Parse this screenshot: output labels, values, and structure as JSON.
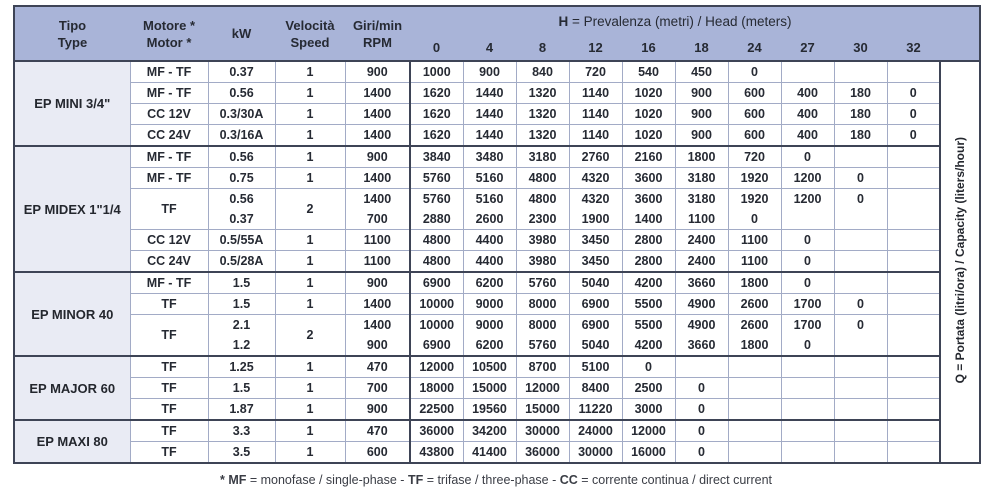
{
  "header": {
    "tipo": [
      "Tipo",
      "Type"
    ],
    "motore": [
      "Motore *",
      "Motor *"
    ],
    "kw": [
      "kW"
    ],
    "speed": [
      "Velocità",
      "Speed"
    ],
    "rpm": [
      "Giri/min",
      "RPM"
    ],
    "h_title": {
      "bold": "H",
      "rest": " = Prevalenza (metri) / Head (meters)"
    },
    "h_cols": [
      "0",
      "4",
      "8",
      "12",
      "16",
      "18",
      "24",
      "27",
      "30",
      "32"
    ]
  },
  "q_label": {
    "bold": "Q",
    "rest": " = Portata (litri/ora) / Capacity (liters/hour)"
  },
  "colors": {
    "header_bg": "#a9b4d8",
    "group_bg": "#e9ebf4",
    "grid_line": "#a2abc6",
    "dark_line": "#3e4456",
    "text": "#262a33"
  },
  "groups": [
    {
      "name": "EP MINI 3/4\"",
      "rows": [
        {
          "motor": "MF - TF",
          "kw": [
            "0.37"
          ],
          "speed": "1",
          "rpm": [
            "900"
          ],
          "h": [
            [
              "1000"
            ],
            [
              "900"
            ],
            [
              "840"
            ],
            [
              "720"
            ],
            [
              "540"
            ],
            [
              "450"
            ],
            [
              "0"
            ],
            [],
            [],
            []
          ]
        },
        {
          "motor": "MF - TF",
          "kw": [
            "0.56"
          ],
          "speed": "1",
          "rpm": [
            "1400"
          ],
          "h": [
            [
              "1620"
            ],
            [
              "1440"
            ],
            [
              "1320"
            ],
            [
              "1140"
            ],
            [
              "1020"
            ],
            [
              "900"
            ],
            [
              "600"
            ],
            [
              "400"
            ],
            [
              "180"
            ],
            [
              "0"
            ]
          ]
        },
        {
          "motor": "CC 12V",
          "kw": [
            "0.3/30A"
          ],
          "speed": "1",
          "rpm": [
            "1400"
          ],
          "h": [
            [
              "1620"
            ],
            [
              "1440"
            ],
            [
              "1320"
            ],
            [
              "1140"
            ],
            [
              "1020"
            ],
            [
              "900"
            ],
            [
              "600"
            ],
            [
              "400"
            ],
            [
              "180"
            ],
            [
              "0"
            ]
          ]
        },
        {
          "motor": "CC 24V",
          "kw": [
            "0.3/16A"
          ],
          "speed": "1",
          "rpm": [
            "1400"
          ],
          "h": [
            [
              "1620"
            ],
            [
              "1440"
            ],
            [
              "1320"
            ],
            [
              "1140"
            ],
            [
              "1020"
            ],
            [
              "900"
            ],
            [
              "600"
            ],
            [
              "400"
            ],
            [
              "180"
            ],
            [
              "0"
            ]
          ]
        }
      ]
    },
    {
      "name": "EP MIDEX 1\"1/4",
      "rows": [
        {
          "motor": "MF - TF",
          "kw": [
            "0.56"
          ],
          "speed": "1",
          "rpm": [
            "900"
          ],
          "h": [
            [
              "3840"
            ],
            [
              "3480"
            ],
            [
              "3180"
            ],
            [
              "2760"
            ],
            [
              "2160"
            ],
            [
              "1800"
            ],
            [
              "720"
            ],
            [
              "0"
            ],
            [],
            []
          ]
        },
        {
          "motor": "MF - TF",
          "kw": [
            "0.75"
          ],
          "speed": "1",
          "rpm": [
            "1400"
          ],
          "h": [
            [
              "5760"
            ],
            [
              "5160"
            ],
            [
              "4800"
            ],
            [
              "4320"
            ],
            [
              "3600"
            ],
            [
              "3180"
            ],
            [
              "1920"
            ],
            [
              "1200"
            ],
            [
              "0"
            ],
            []
          ]
        },
        {
          "motor": "TF",
          "kw": [
            "0.56",
            "0.37"
          ],
          "speed": "2",
          "rpm": [
            "1400",
            "700"
          ],
          "h": [
            [
              "5760",
              "2880"
            ],
            [
              "5160",
              "2600"
            ],
            [
              "4800",
              "2300"
            ],
            [
              "4320",
              "1900"
            ],
            [
              "3600",
              "1400"
            ],
            [
              "3180",
              "1100"
            ],
            [
              "1920",
              "0"
            ],
            [
              "1200",
              ""
            ],
            [
              "0",
              ""
            ],
            []
          ]
        },
        {
          "motor": "CC 12V",
          "kw": [
            "0.5/55A"
          ],
          "speed": "1",
          "rpm": [
            "1100"
          ],
          "h": [
            [
              "4800"
            ],
            [
              "4400"
            ],
            [
              "3980"
            ],
            [
              "3450"
            ],
            [
              "2800"
            ],
            [
              "2400"
            ],
            [
              "1100"
            ],
            [
              "0"
            ],
            [],
            []
          ]
        },
        {
          "motor": "CC 24V",
          "kw": [
            "0.5/28A"
          ],
          "speed": "1",
          "rpm": [
            "1100"
          ],
          "h": [
            [
              "4800"
            ],
            [
              "4400"
            ],
            [
              "3980"
            ],
            [
              "3450"
            ],
            [
              "2800"
            ],
            [
              "2400"
            ],
            [
              "1100"
            ],
            [
              "0"
            ],
            [],
            []
          ]
        }
      ]
    },
    {
      "name": "EP MINOR 40",
      "rows": [
        {
          "motor": "MF - TF",
          "kw": [
            "1.5"
          ],
          "speed": "1",
          "rpm": [
            "900"
          ],
          "h": [
            [
              "6900"
            ],
            [
              "6200"
            ],
            [
              "5760"
            ],
            [
              "5040"
            ],
            [
              "4200"
            ],
            [
              "3660"
            ],
            [
              "1800"
            ],
            [
              "0"
            ],
            [],
            []
          ]
        },
        {
          "motor": "TF",
          "kw": [
            "1.5"
          ],
          "speed": "1",
          "rpm": [
            "1400"
          ],
          "h": [
            [
              "10000"
            ],
            [
              "9000"
            ],
            [
              "8000"
            ],
            [
              "6900"
            ],
            [
              "5500"
            ],
            [
              "4900"
            ],
            [
              "2600"
            ],
            [
              "1700"
            ],
            [
              "0"
            ],
            []
          ]
        },
        {
          "motor": "TF",
          "kw": [
            "2.1",
            "1.2"
          ],
          "speed": "2",
          "rpm": [
            "1400",
            "900"
          ],
          "h": [
            [
              "10000",
              "6900"
            ],
            [
              "9000",
              "6200"
            ],
            [
              "8000",
              "5760"
            ],
            [
              "6900",
              "5040"
            ],
            [
              "5500",
              "4200"
            ],
            [
              "4900",
              "3660"
            ],
            [
              "2600",
              "1800"
            ],
            [
              "1700",
              "0"
            ],
            [
              "0",
              ""
            ],
            []
          ]
        }
      ]
    },
    {
      "name": "EP MAJOR 60",
      "rows": [
        {
          "motor": "TF",
          "kw": [
            "1.25"
          ],
          "speed": "1",
          "rpm": [
            "470"
          ],
          "h": [
            [
              "12000"
            ],
            [
              "10500"
            ],
            [
              "8700"
            ],
            [
              "5100"
            ],
            [
              "0"
            ],
            [],
            [],
            [],
            [],
            []
          ]
        },
        {
          "motor": "TF",
          "kw": [
            "1.5"
          ],
          "speed": "1",
          "rpm": [
            "700"
          ],
          "h": [
            [
              "18000"
            ],
            [
              "15000"
            ],
            [
              "12000"
            ],
            [
              "8400"
            ],
            [
              "2500"
            ],
            [
              "0"
            ],
            [],
            [],
            [],
            []
          ]
        },
        {
          "motor": "TF",
          "kw": [
            "1.87"
          ],
          "speed": "1",
          "rpm": [
            "900"
          ],
          "h": [
            [
              "22500"
            ],
            [
              "19560"
            ],
            [
              "15000"
            ],
            [
              "11220"
            ],
            [
              "3000"
            ],
            [
              "0"
            ],
            [],
            [],
            [],
            []
          ]
        }
      ]
    },
    {
      "name": "EP MAXI 80",
      "rows": [
        {
          "motor": "TF",
          "kw": [
            "3.3"
          ],
          "speed": "1",
          "rpm": [
            "470"
          ],
          "h": [
            [
              "36000"
            ],
            [
              "34200"
            ],
            [
              "30000"
            ],
            [
              "24000"
            ],
            [
              "12000"
            ],
            [
              "0"
            ],
            [],
            [],
            [],
            []
          ]
        },
        {
          "motor": "TF",
          "kw": [
            "3.5"
          ],
          "speed": "1",
          "rpm": [
            "600"
          ],
          "h": [
            [
              "43800"
            ],
            [
              "41400"
            ],
            [
              "36000"
            ],
            [
              "30000"
            ],
            [
              "16000"
            ],
            [
              "0"
            ],
            [],
            [],
            [],
            []
          ]
        }
      ]
    }
  ],
  "footnote": {
    "parts": [
      {
        "t": "* MF",
        "b": true
      },
      {
        "t": " = monofase / single-phase - ",
        "b": false
      },
      {
        "t": "TF",
        "b": true
      },
      {
        "t": " = trifase / three-phase - ",
        "b": false
      },
      {
        "t": "CC",
        "b": true
      },
      {
        "t": " = corrente continua / direct current",
        "b": false
      }
    ]
  }
}
